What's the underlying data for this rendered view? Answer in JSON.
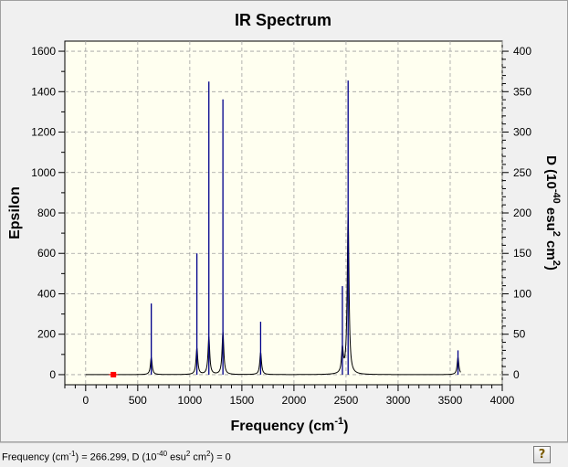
{
  "chart_data": {
    "type": "line",
    "title": "IR Spectrum",
    "xlabel_main": "Frequency (cm",
    "xlabel_sup": "-1",
    "xlabel_end": ")",
    "ylabel": "Epsilon",
    "y2label_parts": {
      "a": "D (10",
      "b": "-40",
      "c": " esu",
      "d": "2",
      "e": " cm",
      "f": "2",
      "g": ")"
    },
    "xlim": [
      -200,
      4000
    ],
    "ylim": [
      -50,
      1650
    ],
    "y2lim": [
      -12.5,
      412.5
    ],
    "x_ticks": [
      0,
      500,
      1000,
      1500,
      2000,
      2500,
      3000,
      3500,
      4000
    ],
    "y_ticks": [
      0,
      200,
      400,
      600,
      800,
      1000,
      1200,
      1400,
      1600
    ],
    "y2_ticks": [
      0,
      50,
      100,
      150,
      200,
      250,
      300,
      350,
      400
    ],
    "grid": true,
    "peaks_stick": [
      {
        "x": 630,
        "y": 352
      },
      {
        "x": 1068,
        "y": 600
      },
      {
        "x": 1183,
        "y": 1450
      },
      {
        "x": 1318,
        "y": 1362
      },
      {
        "x": 1680,
        "y": 262
      },
      {
        "x": 2465,
        "y": 438
      },
      {
        "x": 2520,
        "y": 1455
      },
      {
        "x": 3575,
        "y": 120
      }
    ],
    "spectrum_peaks": [
      {
        "x": 630,
        "y": 85,
        "w": 10
      },
      {
        "x": 1068,
        "y": 130,
        "w": 10
      },
      {
        "x": 1183,
        "y": 185,
        "w": 10
      },
      {
        "x": 1318,
        "y": 210,
        "w": 10
      },
      {
        "x": 1680,
        "y": 110,
        "w": 10
      },
      {
        "x": 2465,
        "y": 120,
        "w": 10
      },
      {
        "x": 2520,
        "y": 800,
        "w": 10
      },
      {
        "x": 3575,
        "y": 85,
        "w": 10
      }
    ],
    "marker": {
      "x": 266.299,
      "y": 0
    }
  },
  "status": {
    "text_a": "Frequency (cm",
    "text_b": "-1",
    "text_c": ") = 266.299, D (10",
    "text_d": "-40",
    "text_e": " esu",
    "text_f": "2",
    "text_g": " cm",
    "text_h": "2",
    "text_i": ") = 0"
  },
  "help": {
    "icon": "?"
  },
  "colors": {
    "plot_bg": "#fffff0",
    "stick": "#00008b",
    "spectrum": "#000000",
    "marker": "#ff0000",
    "grid": "#a0a0a0"
  }
}
